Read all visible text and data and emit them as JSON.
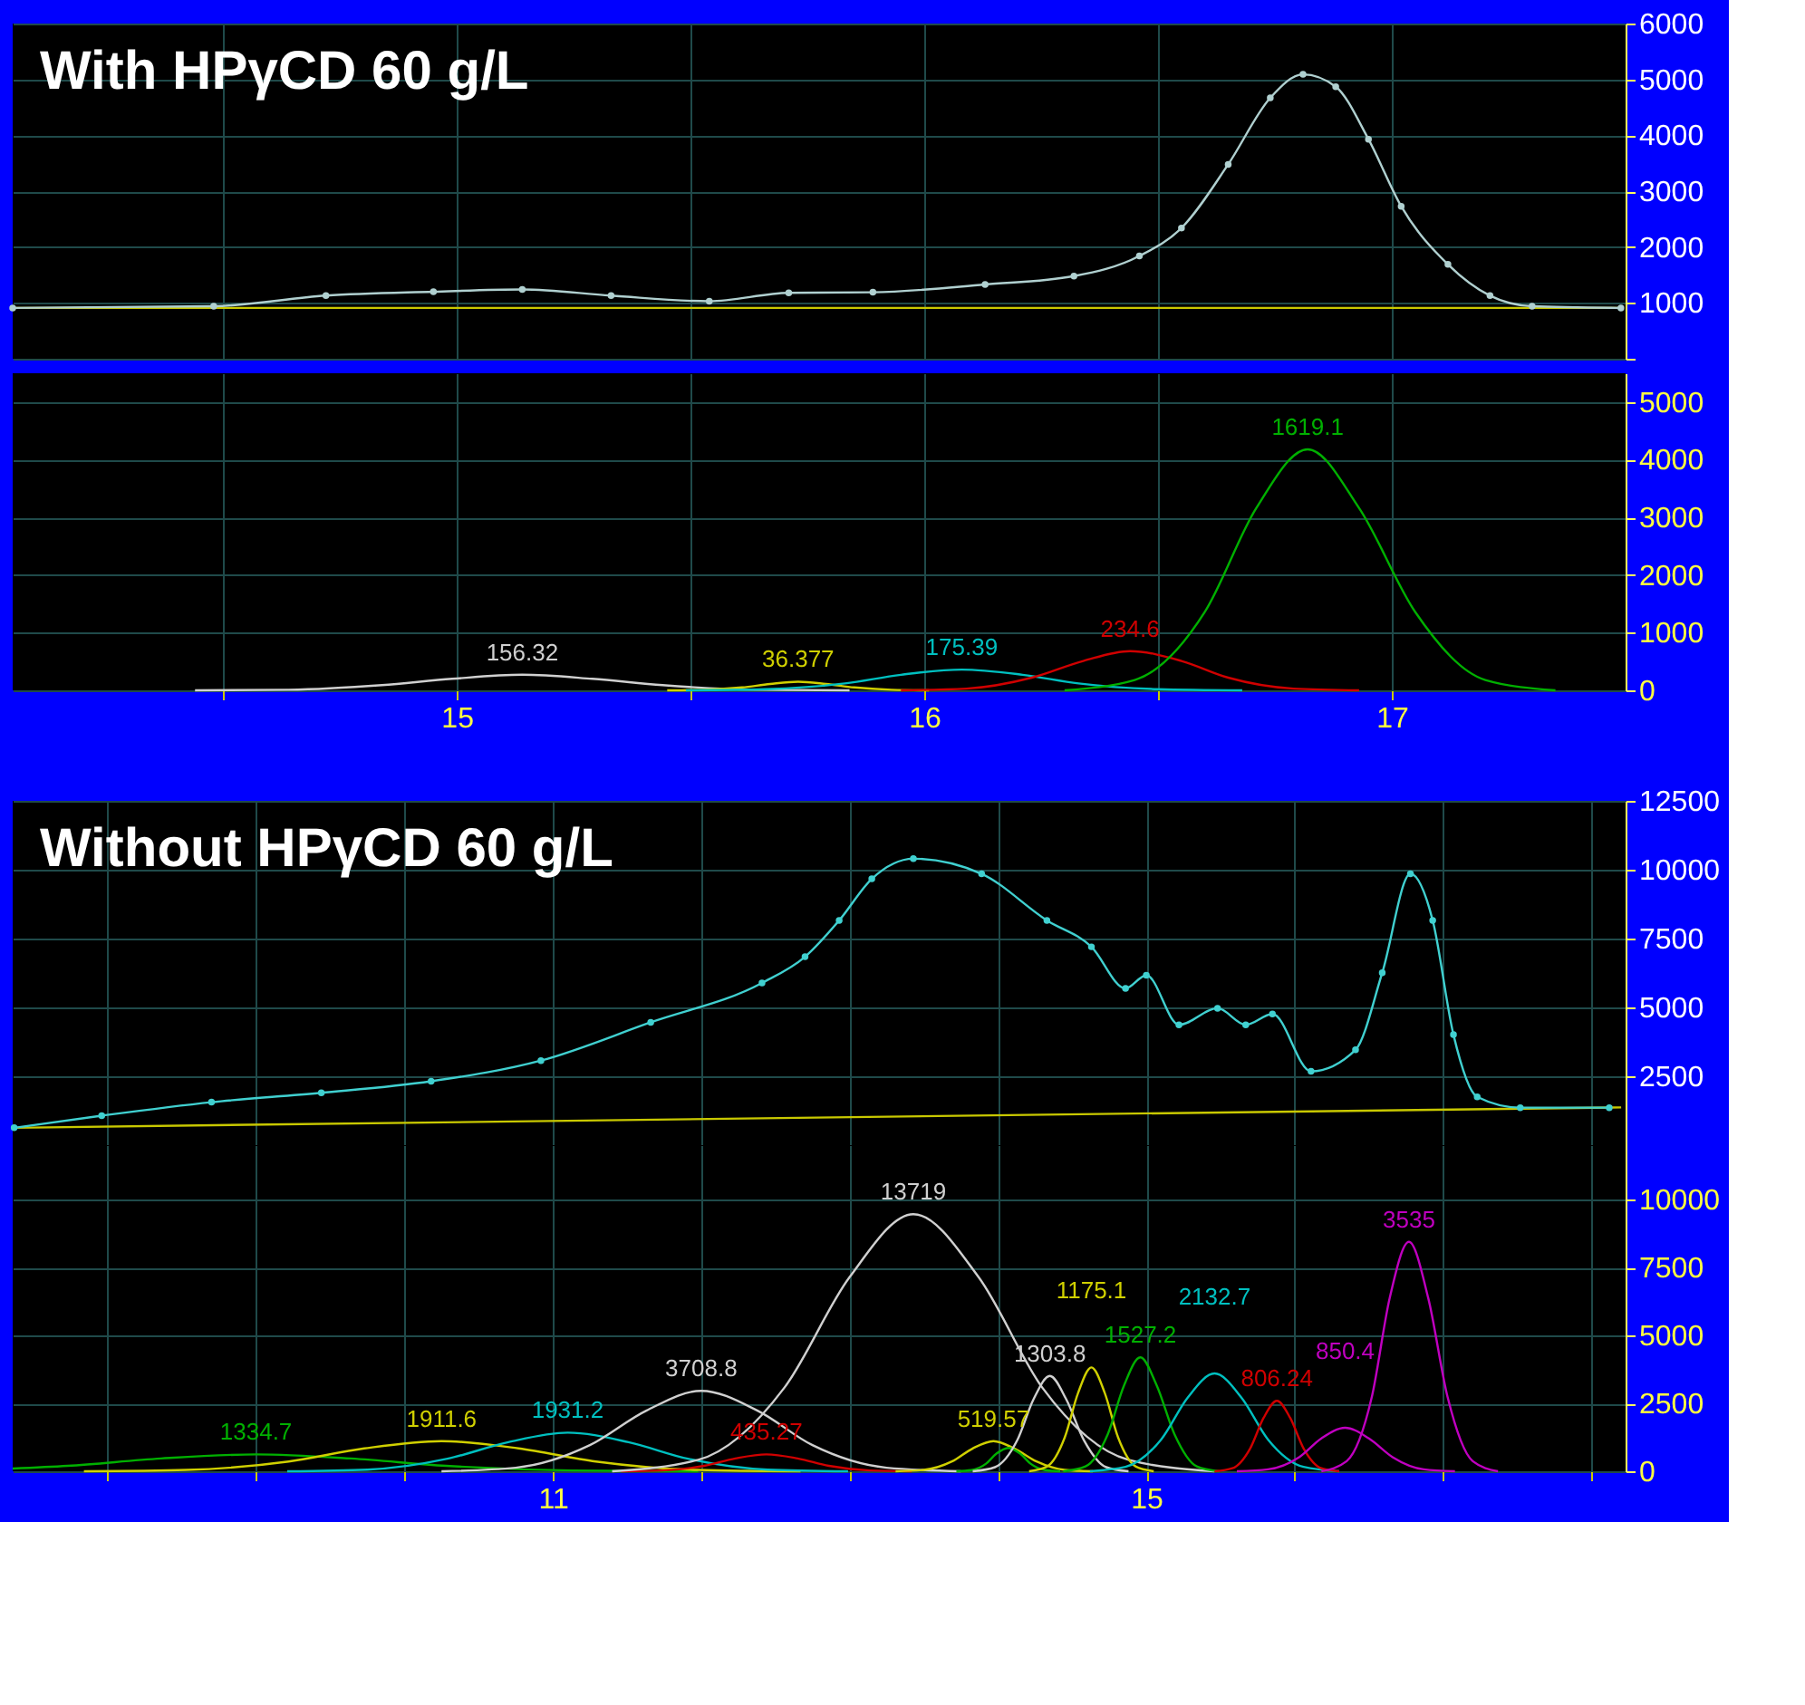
{
  "chart_data": [
    {
      "type": "line",
      "title": "With HPγCD 60 g/L",
      "xlim": [
        14.05,
        17.5
      ],
      "xticks": [
        14.5,
        15,
        15.5,
        16,
        16.5,
        17
      ],
      "ylim": [
        0,
        6000
      ],
      "yticks": [
        {
          "value": 0,
          "label": null
        },
        1000,
        2000,
        3000,
        4000,
        5000,
        6000
      ],
      "tick_labels": "y",
      "grid": true,
      "series": [
        {
          "type": "line",
          "color": "#c8c800",
          "x": [
            14.05,
            17.49
          ],
          "values": [
            910,
            910
          ]
        },
        {
          "type": "line",
          "color": "#b0d0d0",
          "marker": "circle",
          "x": [
            14.05,
            14.48,
            14.72,
            14.95,
            15.14,
            15.33,
            15.54,
            15.71,
            15.89,
            16.13,
            16.32,
            16.46,
            16.55,
            16.65,
            16.74,
            16.81,
            16.88,
            16.95,
            17.02,
            17.12,
            17.21,
            17.3,
            17.49
          ],
          "values": [
            910,
            940,
            1130,
            1200,
            1240,
            1130,
            1030,
            1180,
            1190,
            1330,
            1480,
            1840,
            2340,
            3480,
            4670,
            5090,
            4870,
            3930,
            2730,
            1690,
            1130,
            940,
            910
          ]
        }
      ]
    },
    {
      "type": "line",
      "xlim": [
        14.05,
        17.5
      ],
      "xticks": [
        {
          "value": 14.5,
          "label": null
        },
        15,
        {
          "value": 15.5,
          "label": null
        },
        16,
        {
          "value": 16.5,
          "label": null
        },
        17
      ],
      "ylim": [
        0,
        5500
      ],
      "yticks": [
        0,
        1000,
        2000,
        3000,
        4000,
        5000
      ],
      "grid": true,
      "annotations": [
        {
          "text": "156.32",
          "x": 15.14,
          "y": 270
        },
        {
          "text": "36.377",
          "x": 15.73,
          "y": 150
        },
        {
          "text": "175.39",
          "x": 16.08,
          "y": 360
        },
        {
          "text": "234.6",
          "x": 16.44,
          "y": 680
        },
        {
          "text": "1619.1",
          "x": 16.82,
          "y": 4180
        }
      ],
      "series": [
        {
          "color": "#d0d0d0",
          "x": [
            14.44,
            14.64,
            14.84,
            14.99,
            15.14,
            15.29,
            15.44,
            15.64,
            15.84
          ],
          "values": [
            0,
            10,
            90,
            200,
            270,
            200,
            90,
            10,
            0
          ]
        },
        {
          "color": "#d0d000",
          "x": [
            15.45,
            15.53,
            15.61,
            15.67,
            15.73,
            15.79,
            15.85,
            15.93,
            16.01
          ],
          "values": [
            0,
            10,
            50,
            110,
            150,
            110,
            50,
            10,
            0
          ]
        },
        {
          "color": "#00c0c0",
          "x": [
            15.49,
            15.66,
            15.83,
            15.95,
            16.08,
            16.21,
            16.33,
            16.5,
            16.68
          ],
          "values": [
            0,
            20,
            120,
            270,
            360,
            270,
            120,
            20,
            0
          ]
        },
        {
          "color": "#d00000",
          "x": [
            15.95,
            16.09,
            16.23,
            16.34,
            16.44,
            16.55,
            16.65,
            16.79,
            16.93
          ],
          "values": [
            0,
            30,
            220,
            510,
            680,
            510,
            220,
            30,
            0
          ]
        },
        {
          "color": "#00b000",
          "x": [
            16.3,
            16.45,
            16.6,
            16.71,
            16.82,
            16.93,
            17.05,
            17.2,
            17.35
          ],
          "values": [
            0,
            180,
            1360,
            3160,
            4180,
            3160,
            1360,
            180,
            0
          ]
        }
      ]
    },
    {
      "type": "line",
      "title": "Without HPγCD 60 g/L",
      "xlim": [
        7.36,
        18.23
      ],
      "xticks": [
        8,
        9,
        10,
        11,
        12,
        13,
        14,
        15,
        16,
        17,
        18
      ],
      "ylim": [
        0,
        12500
      ],
      "yticks": [
        2500,
        5000,
        7500,
        10000,
        12500
      ],
      "tick_labels": "y",
      "grid": true,
      "series": [
        {
          "type": "line",
          "color": "#c8c800",
          "x": [
            7.37,
            18.2
          ],
          "values": [
            630,
            1370
          ]
        },
        {
          "type": "line",
          "color": "#40d0d0",
          "marker": "circle",
          "x": [
            7.37,
            7.96,
            8.7,
            9.44,
            10.18,
            10.92,
            11.66,
            12.41,
            12.7,
            12.93,
            13.15,
            13.43,
            13.89,
            14.33,
            14.63,
            14.86,
            15.0,
            15.22,
            15.48,
            15.67,
            15.85,
            16.11,
            16.41,
            16.59,
            16.78,
            16.93,
            17.07,
            17.23,
            17.52,
            18.12
          ],
          "values": [
            630,
            1070,
            1560,
            1900,
            2320,
            3070,
            4460,
            5890,
            6840,
            8160,
            9670,
            10400,
            9850,
            8160,
            7200,
            5690,
            6170,
            4370,
            4970,
            4370,
            4760,
            2680,
            3460,
            6260,
            9850,
            8160,
            4010,
            1750,
            1360,
            1360
          ]
        }
      ]
    },
    {
      "type": "line",
      "xlim": [
        7.36,
        18.23
      ],
      "xticks": [
        {
          "value": 8,
          "label": null
        },
        {
          "value": 9,
          "label": null
        },
        {
          "value": 10,
          "label": null
        },
        11,
        {
          "value": 12,
          "label": null
        },
        {
          "value": 13,
          "label": null
        },
        {
          "value": 14,
          "label": null
        },
        15,
        {
          "value": 16,
          "label": null
        },
        {
          "value": 17,
          "label": null
        },
        {
          "value": 18,
          "label": null
        }
      ],
      "ylim": [
        0,
        12000
      ],
      "yticks": [
        0,
        2500,
        5000,
        7500,
        10000
      ],
      "grid": true,
      "annotations": [
        {
          "text": "1334.7",
          "x": 9.0,
          "y": 620
        },
        {
          "text": "1911.6",
          "x": 10.25,
          "y": 1110
        },
        {
          "text": "1931.2",
          "x": 11.1,
          "y": 1420
        },
        {
          "text": "3708.8",
          "x": 12.0,
          "y": 2960
        },
        {
          "text": "435.27",
          "x": 12.44,
          "y": 620
        },
        {
          "text": "13719",
          "x": 13.43,
          "y": 9460
        },
        {
          "text": "519.57",
          "x": 13.97,
          "y": 1110
        },
        {
          "text": "1303.8",
          "x": 14.35,
          "y": 3510
        },
        {
          "text": "1527.2",
          "x": 14.96,
          "y": 4190
        },
        {
          "text": "1175.1",
          "x": 14.63,
          "y": 3820
        },
        {
          "text": "2132.7",
          "x": 15.46,
          "y": 3600
        },
        {
          "text": "806.24",
          "x": 15.88,
          "y": 2590
        },
        {
          "text": "850.4",
          "x": 16.34,
          "y": 1600
        },
        {
          "text": "3535",
          "x": 16.77,
          "y": 8440
        }
      ],
      "series": [
        {
          "color": "#00b000",
          "x": [
            7.36,
            7.73,
            8.36,
            9.0,
            9.64,
            10.28,
            11.13,
            11.98
          ],
          "values": [
            100,
            200,
            470,
            620,
            470,
            200,
            30,
            0
          ]
        },
        {
          "color": "#d0d000",
          "x": [
            7.84,
            8.53,
            9.22,
            9.73,
            10.25,
            10.77,
            11.29,
            11.98,
            12.67
          ],
          "values": [
            0,
            50,
            360,
            840,
            1110,
            840,
            360,
            50,
            0
          ]
        },
        {
          "color": "#00c0c0",
          "x": [
            9.21,
            9.75,
            10.29,
            10.7,
            11.1,
            11.51,
            11.91,
            12.45,
            12.99
          ],
          "values": [
            0,
            60,
            460,
            1070,
            1420,
            1070,
            460,
            60,
            0
          ]
        },
        {
          "color": "#d0d0d0",
          "x": [
            10.25,
            10.75,
            11.25,
            11.63,
            12.0,
            12.38,
            12.75,
            13.25,
            13.75
          ],
          "values": [
            0,
            130,
            960,
            2230,
            2960,
            2230,
            960,
            130,
            0
          ]
        },
        {
          "color": "#d00000",
          "x": [
            11.46,
            11.74,
            12.02,
            12.23,
            12.44,
            12.65,
            12.86,
            13.14,
            13.42
          ],
          "values": [
            0,
            30,
            200,
            470,
            620,
            470,
            200,
            30,
            0
          ]
        },
        {
          "color": "#d0d0d0",
          "x": [
            11.4,
            11.98,
            12.56,
            13.0,
            13.43,
            13.87,
            14.3,
            14.88,
            15.46
          ],
          "values": [
            0,
            420,
            3070,
            7140,
            9460,
            7140,
            3070,
            420,
            0
          ]
        },
        {
          "color": "#d0d000",
          "x": [
            13.31,
            13.5,
            13.69,
            13.83,
            13.97,
            14.11,
            14.26,
            14.45,
            14.64
          ],
          "values": [
            0,
            50,
            360,
            840,
            1110,
            840,
            360,
            50,
            0
          ]
        },
        {
          "color": "#00b000",
          "x": [
            13.72,
            13.82,
            13.92,
            13.99,
            14.07,
            14.15,
            14.22,
            14.32,
            14.42
          ],
          "values": [
            0,
            40,
            280,
            650,
            860,
            650,
            280,
            40,
            0
          ]
        },
        {
          "color": "#d0d0d0",
          "x": [
            13.83,
            13.98,
            14.13,
            14.24,
            14.35,
            14.46,
            14.58,
            14.73,
            14.88
          ],
          "values": [
            0,
            150,
            1140,
            2650,
            3510,
            2650,
            1140,
            150,
            0
          ]
        },
        {
          "color": "#d0d000",
          "x": [
            14.21,
            14.33,
            14.45,
            14.54,
            14.63,
            14.72,
            14.81,
            14.93,
            15.05
          ],
          "values": [
            0,
            170,
            1240,
            2880,
            3820,
            2880,
            1240,
            170,
            0
          ]
        },
        {
          "color": "#00b000",
          "x": [
            14.44,
            14.59,
            14.74,
            14.85,
            14.96,
            15.07,
            15.19,
            15.34,
            15.49
          ],
          "values": [
            0,
            180,
            1360,
            3160,
            4190,
            3160,
            1360,
            180,
            0
          ]
        },
        {
          "color": "#00c0c0",
          "x": [
            14.62,
            14.86,
            15.1,
            15.28,
            15.46,
            15.64,
            15.82,
            16.06,
            16.3
          ],
          "values": [
            0,
            160,
            1170,
            2720,
            3600,
            2720,
            1170,
            160,
            0
          ]
        },
        {
          "color": "#d00000",
          "x": [
            15.46,
            15.58,
            15.7,
            15.79,
            15.88,
            15.97,
            16.06,
            16.18,
            16.3
          ],
          "values": [
            0,
            110,
            840,
            1960,
            2590,
            1960,
            840,
            110,
            0
          ]
        },
        {
          "color": "#c000c0",
          "x": [
            15.61,
            15.82,
            16.03,
            16.18,
            16.34,
            16.5,
            16.66,
            16.87,
            17.08
          ],
          "values": [
            0,
            70,
            520,
            1210,
            1600,
            1210,
            520,
            70,
            0
          ]
        },
        {
          "color": "#c000c0",
          "x": [
            16.18,
            16.35,
            16.52,
            16.64,
            16.77,
            16.9,
            17.03,
            17.2,
            17.37
          ],
          "values": [
            0,
            370,
            2740,
            6370,
            8440,
            6370,
            2740,
            370,
            0
          ]
        }
      ]
    }
  ]
}
